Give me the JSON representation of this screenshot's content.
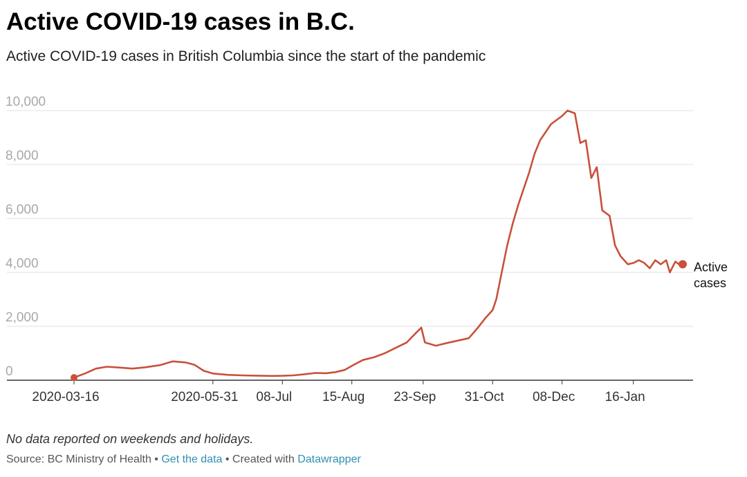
{
  "header": {
    "title": "Active COVID-19 cases in B.C.",
    "subtitle": "Active COVID-19 cases in British Columbia since the start of the pandemic"
  },
  "footer": {
    "note": "No data reported on weekends and holidays.",
    "source_prefix": "Source: BC Ministry of Health",
    "sep1": " • ",
    "get_data": "Get the data",
    "sep2": " • Created with ",
    "datawrapper": "Datawrapper"
  },
  "colors": {
    "line": "#c9503a",
    "grid": "#e2e2e2",
    "link": "#2f8fb5"
  },
  "chart_data": {
    "type": "line",
    "title": "Active COVID-19 cases in B.C.",
    "xlabel": "",
    "ylabel": "",
    "ylim": [
      0,
      10000
    ],
    "yticks": [
      0,
      2000,
      4000,
      6000,
      8000,
      10000
    ],
    "ytick_labels": [
      "0",
      "2,000",
      "4,000",
      "6,000",
      "8,000",
      "10,000"
    ],
    "xlim": [
      "2020-03-16",
      "2021-02-12"
    ],
    "xticks": [
      "2020-03-16",
      "2020-05-31",
      "2020-07-08",
      "2020-08-15",
      "2020-09-23",
      "2020-10-31",
      "2020-12-08",
      "2021-01-16"
    ],
    "xtick_labels": [
      "2020-03-16",
      "2020-05-31",
      "08-Jul",
      "15-Aug",
      "23-Sep",
      "31-Oct",
      "08-Dec",
      "16-Jan"
    ],
    "grid": true,
    "series": [
      {
        "name": "Active cases",
        "end_label": [
          "Active",
          "cases"
        ],
        "points": [
          [
            "2020-03-16",
            100
          ],
          [
            "2020-03-22",
            250
          ],
          [
            "2020-03-28",
            430
          ],
          [
            "2020-04-03",
            500
          ],
          [
            "2020-04-10",
            470
          ],
          [
            "2020-04-17",
            430
          ],
          [
            "2020-04-24",
            480
          ],
          [
            "2020-05-02",
            560
          ],
          [
            "2020-05-09",
            700
          ],
          [
            "2020-05-16",
            660
          ],
          [
            "2020-05-21",
            570
          ],
          [
            "2020-05-26",
            350
          ],
          [
            "2020-05-31",
            250
          ],
          [
            "2020-06-08",
            200
          ],
          [
            "2020-06-16",
            180
          ],
          [
            "2020-06-24",
            170
          ],
          [
            "2020-07-02",
            160
          ],
          [
            "2020-07-08",
            165
          ],
          [
            "2020-07-14",
            180
          ],
          [
            "2020-07-20",
            220
          ],
          [
            "2020-07-26",
            270
          ],
          [
            "2020-08-01",
            260
          ],
          [
            "2020-08-06",
            300
          ],
          [
            "2020-08-11",
            380
          ],
          [
            "2020-08-15",
            530
          ],
          [
            "2020-08-21",
            750
          ],
          [
            "2020-08-27",
            850
          ],
          [
            "2020-09-02",
            1000
          ],
          [
            "2020-09-08",
            1200
          ],
          [
            "2020-09-14",
            1400
          ],
          [
            "2020-09-19",
            1750
          ],
          [
            "2020-09-22",
            1950
          ],
          [
            "2020-09-24",
            1400
          ],
          [
            "2020-09-30",
            1280
          ],
          [
            "2020-10-06",
            1380
          ],
          [
            "2020-10-12",
            1470
          ],
          [
            "2020-10-18",
            1560
          ],
          [
            "2020-10-23",
            1950
          ],
          [
            "2020-10-27",
            2300
          ],
          [
            "2020-10-31",
            2600
          ],
          [
            "2020-11-02",
            3000
          ],
          [
            "2020-11-05",
            4000
          ],
          [
            "2020-11-08",
            5000
          ],
          [
            "2020-11-11",
            5800
          ],
          [
            "2020-11-14",
            6500
          ],
          [
            "2020-11-17",
            7100
          ],
          [
            "2020-11-20",
            7700
          ],
          [
            "2020-11-23",
            8400
          ],
          [
            "2020-11-26",
            8900
          ],
          [
            "2020-11-29",
            9200
          ],
          [
            "2020-12-02",
            9500
          ],
          [
            "2020-12-08",
            9800
          ],
          [
            "2020-12-11",
            10000
          ],
          [
            "2020-12-15",
            9900
          ],
          [
            "2020-12-18",
            8800
          ],
          [
            "2020-12-21",
            8900
          ],
          [
            "2020-12-24",
            7500
          ],
          [
            "2020-12-27",
            7900
          ],
          [
            "2020-12-30",
            6300
          ],
          [
            "2021-01-03",
            6100
          ],
          [
            "2021-01-06",
            5000
          ],
          [
            "2021-01-09",
            4600
          ],
          [
            "2021-01-13",
            4300
          ],
          [
            "2021-01-16",
            4350
          ],
          [
            "2021-01-19",
            4450
          ],
          [
            "2021-01-22",
            4350
          ],
          [
            "2021-01-25",
            4150
          ],
          [
            "2021-01-28",
            4450
          ],
          [
            "2021-01-31",
            4300
          ],
          [
            "2021-02-03",
            4450
          ],
          [
            "2021-02-05",
            4000
          ],
          [
            "2021-02-08",
            4400
          ],
          [
            "2021-02-10",
            4300
          ],
          [
            "2021-02-12",
            4300
          ]
        ]
      }
    ]
  }
}
